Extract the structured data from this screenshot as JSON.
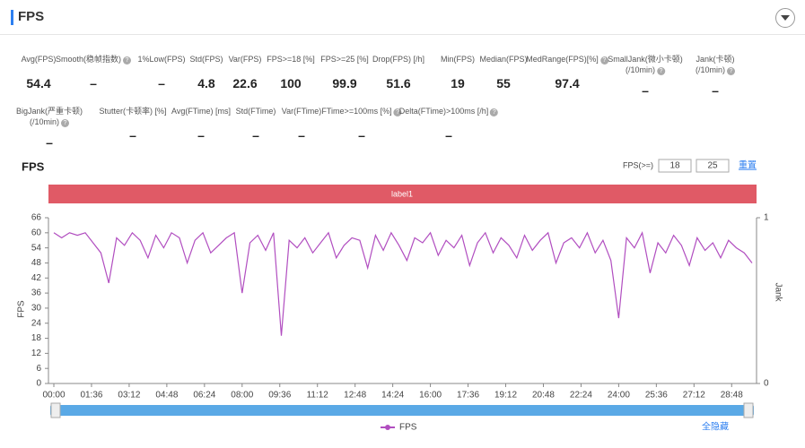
{
  "header": {
    "title": "FPS"
  },
  "stats": [
    [
      {
        "label": [
          "Avg(FPS)"
        ],
        "value": 54.4
      },
      {
        "label": [
          "Smooth(稳帧指数)"
        ],
        "value": "–",
        "help": true
      },
      {
        "label": [
          "1%Low(FPS)"
        ],
        "value": "–"
      },
      {
        "label": [
          "Std(FPS)"
        ],
        "value": 4.8
      },
      {
        "label": [
          "Var(FPS)"
        ],
        "value": 22.6
      },
      {
        "label": [
          "FPS>=18 [%]"
        ],
        "value": 100
      },
      {
        "label": [
          "FPS>=25 [%]"
        ],
        "value": 99.9
      },
      {
        "label": [
          "Drop(FPS) [/h]"
        ],
        "value": 51.6
      },
      {
        "label": [
          "Min(FPS)"
        ],
        "value": 19
      },
      {
        "label": [
          "Median(FPS)"
        ],
        "value": 55
      },
      {
        "label": [
          "MedRange(FPS)[%]"
        ],
        "value": 97.4,
        "help": true
      },
      {
        "label": [
          "SmallJank(微小卡顿)",
          "(/10min)"
        ],
        "value": "–",
        "help": true
      },
      {
        "label": [
          "Jank(卡顿)",
          "(/10min)"
        ],
        "value": "–",
        "help": true
      }
    ],
    [
      {
        "label": [
          "BigJank(严重卡顿)",
          "(/10min)"
        ],
        "value": "–",
        "help": true
      },
      {
        "label": [
          "Stutter(卡顿率) [%]"
        ],
        "value": "–"
      },
      {
        "label": [
          "Avg(FTime) [ms]"
        ],
        "value": "–"
      },
      {
        "label": [
          "Std(FTime)"
        ],
        "value": "–"
      },
      {
        "label": [
          "Var(FTime)"
        ],
        "value": "–"
      },
      {
        "label": [
          "FTime>=100ms [%]"
        ],
        "value": "–",
        "help": true
      },
      {
        "label": [
          "Delta(FTime)>100ms [/h]"
        ],
        "value": "–",
        "help": true
      }
    ]
  ],
  "controls": {
    "threshold_label": "FPS(>=)",
    "thresholds": [
      18,
      25
    ],
    "reset": "重置",
    "hide_all": "全隐藏"
  },
  "chart_data": {
    "type": "line",
    "title": "FPS",
    "band_label": "label1",
    "y_label": "FPS",
    "y2_label": "Jank",
    "x": [
      0,
      20,
      40,
      60,
      80,
      100,
      120,
      140,
      160,
      180,
      200,
      220,
      240,
      260,
      280,
      300,
      320,
      340,
      360,
      380,
      400,
      420,
      440,
      460,
      480,
      500,
      520,
      540,
      560,
      580,
      600,
      620,
      640,
      660,
      680,
      700,
      720,
      740,
      760,
      780,
      800,
      820,
      840,
      860,
      880,
      900,
      920,
      940,
      960,
      980,
      1000,
      1020,
      1040,
      1060,
      1080,
      1100,
      1120,
      1140,
      1160,
      1180,
      1200,
      1220,
      1240,
      1260,
      1280,
      1300,
      1320,
      1340,
      1360,
      1380,
      1400,
      1420,
      1440,
      1460,
      1480,
      1500,
      1520,
      1540,
      1560,
      1580,
      1600,
      1620,
      1640,
      1660,
      1680,
      1700,
      1720,
      1740,
      1760,
      1780
    ],
    "series": [
      {
        "name": "FPS",
        "color": "#b14ec0",
        "values": [
          60,
          58,
          60,
          59,
          60,
          56,
          52,
          40,
          58,
          55,
          60,
          57,
          50,
          59,
          54,
          60,
          58,
          48,
          57,
          60,
          52,
          55,
          58,
          60,
          36,
          56,
          59,
          53,
          60,
          19,
          57,
          54,
          58,
          52,
          56,
          60,
          50,
          55,
          58,
          57,
          46,
          59,
          53,
          60,
          55,
          49,
          58,
          56,
          60,
          51,
          57,
          54,
          59,
          47,
          56,
          60,
          52,
          58,
          55,
          50,
          59,
          53,
          57,
          60,
          48,
          56,
          58,
          54,
          60,
          52,
          57,
          49,
          26,
          58,
          54,
          60,
          44,
          56,
          52,
          59,
          55,
          47,
          58,
          53,
          56,
          50,
          57,
          54,
          52,
          48
        ]
      }
    ],
    "xlim": [
      0,
      1780
    ],
    "xticks": [
      {
        "value": 0,
        "label": "00:00"
      },
      {
        "value": 96,
        "label": "01:36"
      },
      {
        "value": 192,
        "label": "03:12"
      },
      {
        "value": 288,
        "label": "04:48"
      },
      {
        "value": 384,
        "label": "06:24"
      },
      {
        "value": 480,
        "label": "08:00"
      },
      {
        "value": 576,
        "label": "09:36"
      },
      {
        "value": 672,
        "label": "11:12"
      },
      {
        "value": 768,
        "label": "12:48"
      },
      {
        "value": 864,
        "label": "14:24"
      },
      {
        "value": 960,
        "label": "16:00"
      },
      {
        "value": 1056,
        "label": "17:36"
      },
      {
        "value": 1152,
        "label": "19:12"
      },
      {
        "value": 1248,
        "label": "20:48"
      },
      {
        "value": 1344,
        "label": "22:24"
      },
      {
        "value": 1440,
        "label": "24:00"
      },
      {
        "value": 1536,
        "label": "25:36"
      },
      {
        "value": 1632,
        "label": "27:12"
      },
      {
        "value": 1728,
        "label": "28:48"
      }
    ],
    "ylim": [
      0,
      66
    ],
    "yticks": [
      0,
      6,
      12,
      18,
      24,
      30,
      36,
      42,
      48,
      54,
      60,
      66
    ],
    "y2lim": [
      0,
      1
    ],
    "y2ticks": [
      0,
      1
    ]
  }
}
